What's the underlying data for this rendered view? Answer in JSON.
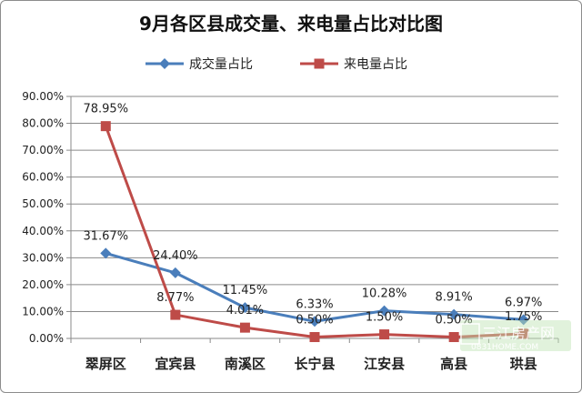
{
  "chart_data": {
    "type": "line",
    "title": "9月各区县成交量、来电量占比对比图",
    "categories": [
      "翠屏区",
      "宜宾县",
      "南溪区",
      "长宁县",
      "江安县",
      "高县",
      "珙县"
    ],
    "series": [
      {
        "name": "成交量占比",
        "color": "#4a7ebb",
        "marker": "diamond",
        "values": [
          31.67,
          24.4,
          11.45,
          6.33,
          10.28,
          8.91,
          6.97
        ],
        "labels": [
          "31.67%",
          "24.40%",
          "11.45%",
          "6.33%",
          "10.28%",
          "8.91%",
          "6.97%"
        ]
      },
      {
        "name": "来电量占比",
        "color": "#be4b48",
        "marker": "square",
        "values": [
          78.95,
          8.77,
          4.01,
          0.5,
          1.5,
          0.5,
          1.75
        ],
        "labels": [
          "78.95%",
          "8.77%",
          "4.01%",
          "0.50%",
          "1.50%",
          "0.50%",
          "1.75%"
        ]
      }
    ],
    "ylim": [
      0,
      90
    ],
    "yticks": [
      "0.00%",
      "10.00%",
      "20.00%",
      "30.00%",
      "40.00%",
      "50.00%",
      "60.00%",
      "70.00%",
      "80.00%",
      "90.00%"
    ],
    "grid": true,
    "legend": "top-center",
    "xlabel": "",
    "ylabel": ""
  },
  "watermark": {
    "text": "三江房产网",
    "sub": "0831HOME.COM"
  }
}
